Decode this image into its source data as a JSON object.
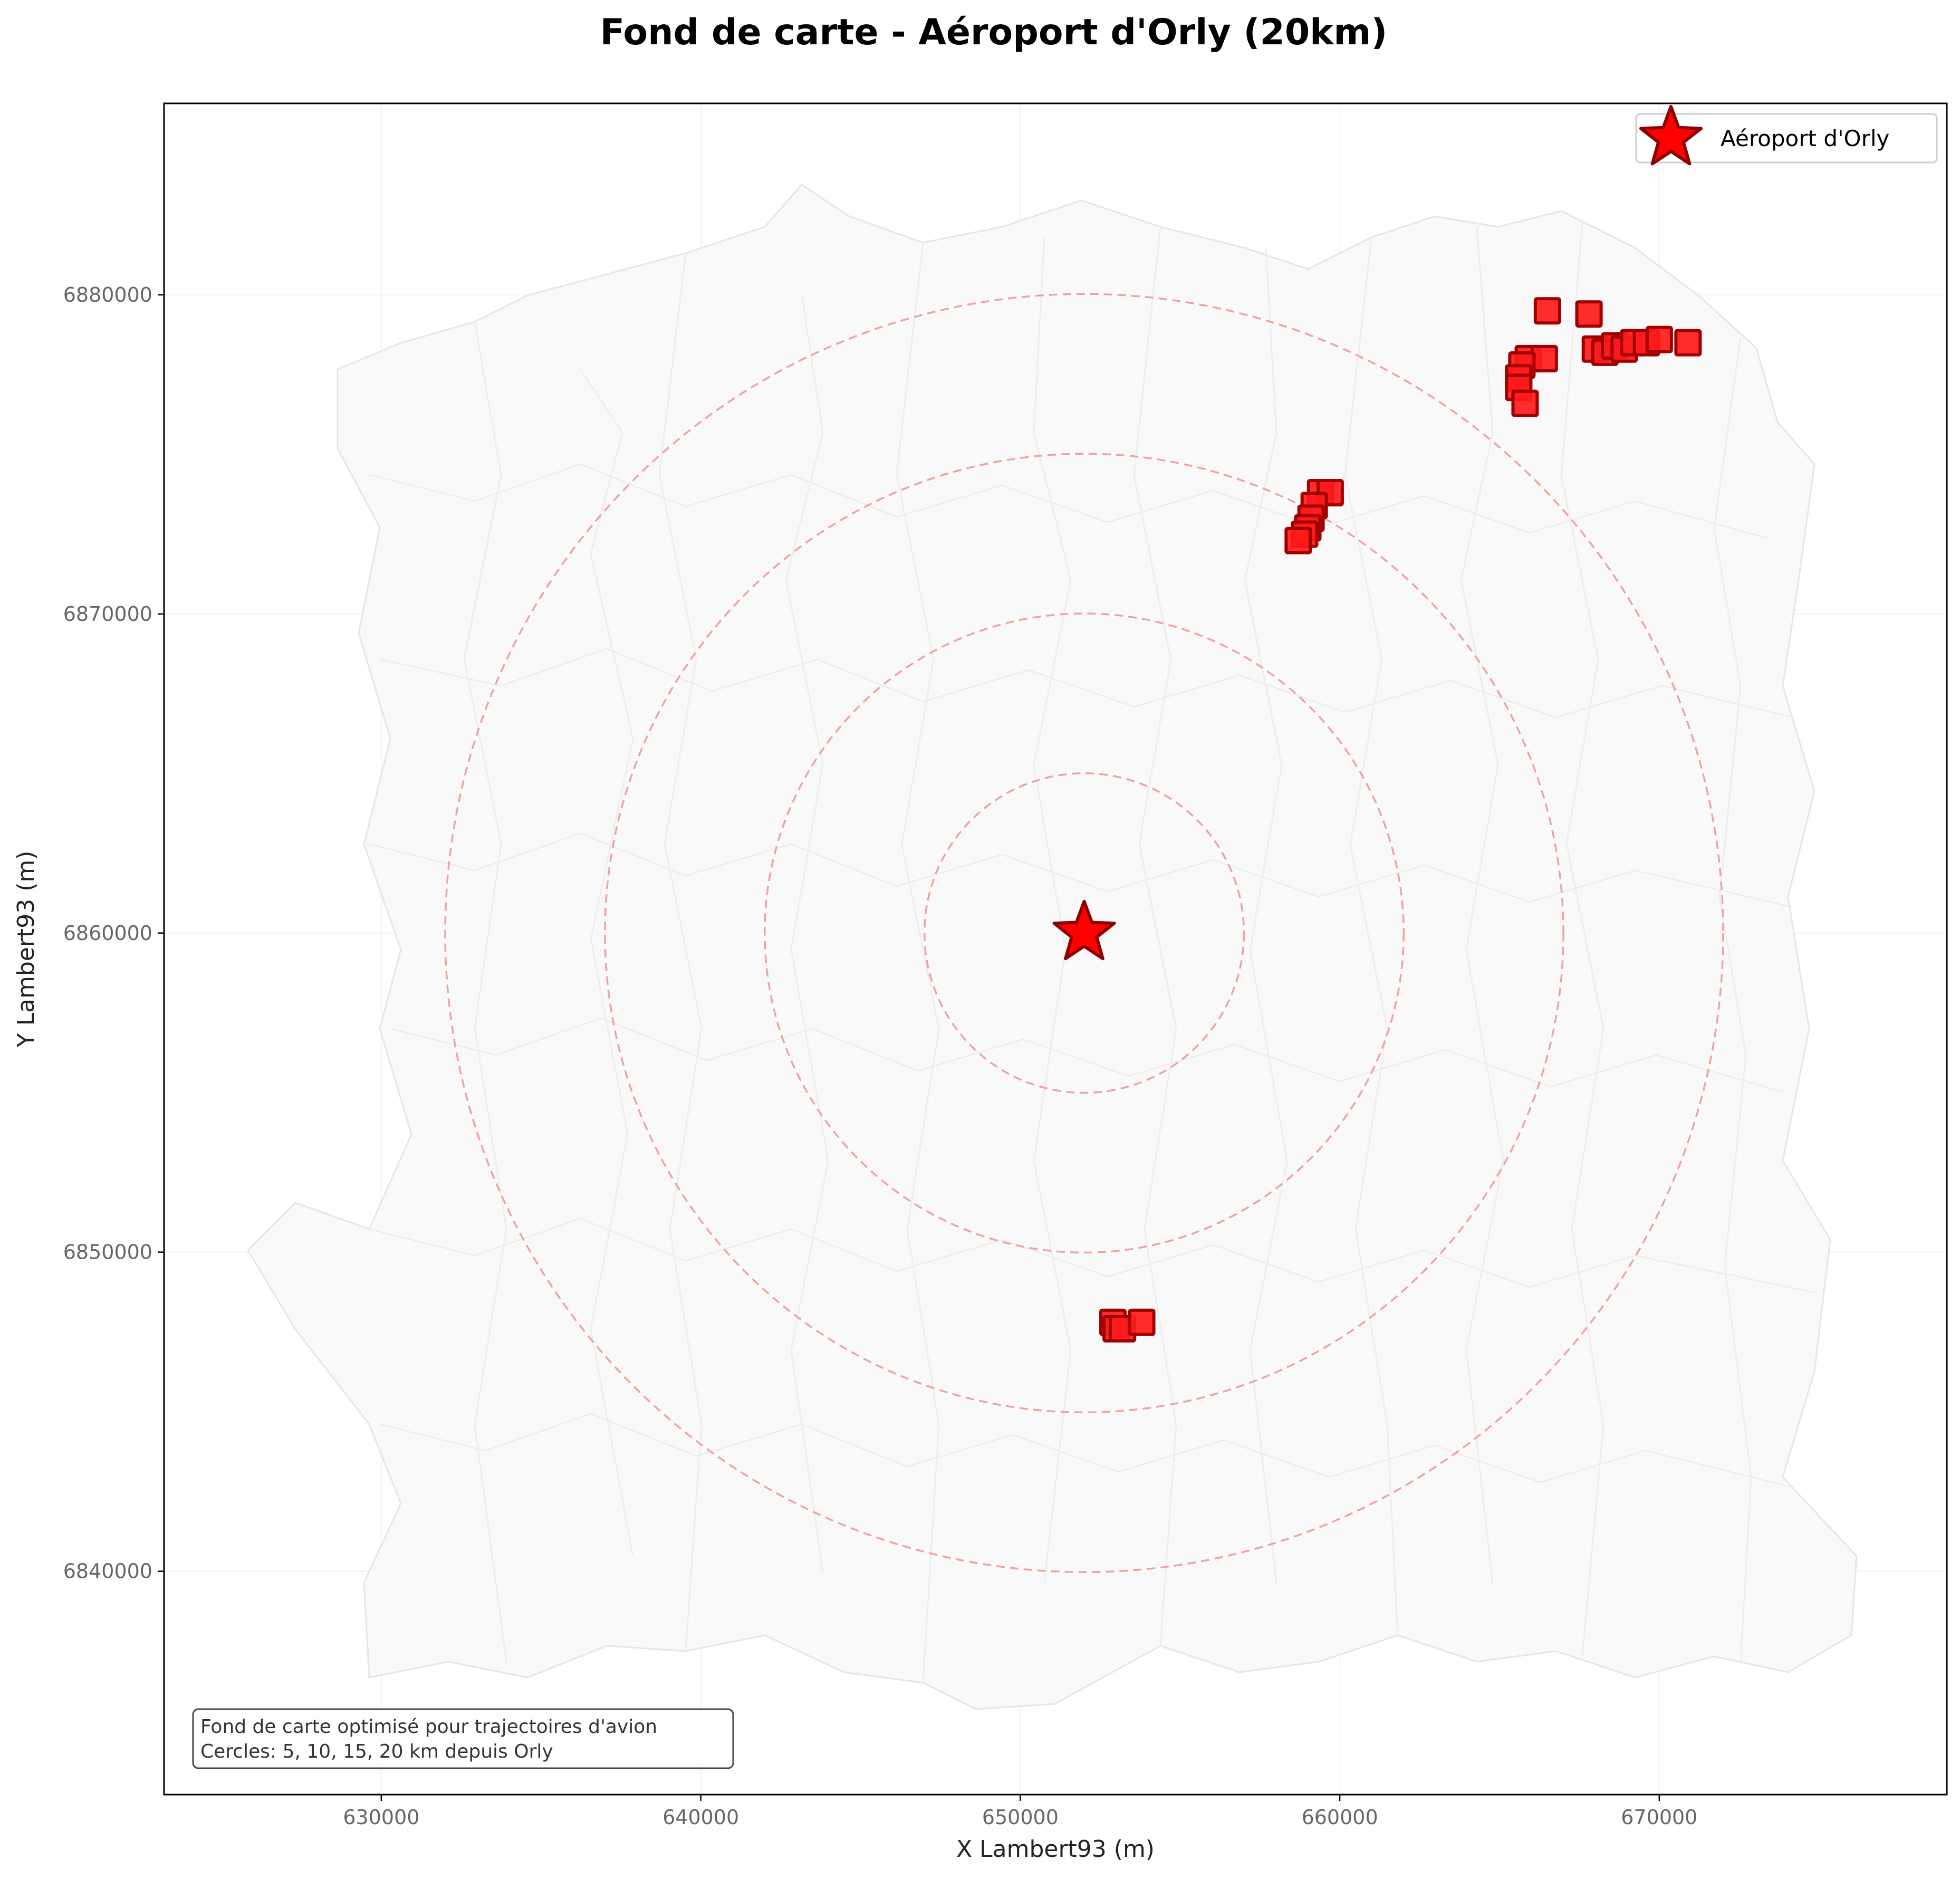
{
  "chart_data": {
    "type": "scatter",
    "title": "Fond de carte - Aéroport d'Orly (20km)",
    "xlabel": "X Lambert93 (m)",
    "ylabel": "Y Lambert93 (m)",
    "xlim": [
      623200,
      679000
    ],
    "ylim": [
      6833000,
      6886000
    ],
    "x_ticks": [
      630000,
      640000,
      650000,
      660000,
      670000
    ],
    "y_ticks": [
      6840000,
      6850000,
      6860000,
      6870000,
      6880000
    ],
    "x_tick_labels": [
      "630000",
      "640000",
      "650000",
      "660000",
      "670000"
    ],
    "y_tick_labels": [
      "6840000",
      "6850000",
      "6860000",
      "6870000",
      "6880000"
    ],
    "grid": true,
    "legend_position": "top-right",
    "airport": {
      "name": "Aéroport d'Orly",
      "x": 652000,
      "y": 6860000,
      "color": "#ff0000",
      "edge_color": "#8b0000",
      "marker": "star"
    },
    "circles": {
      "radii_km": [
        5,
        10,
        15,
        20
      ],
      "color": "#f4a0a0",
      "style": "dashed"
    },
    "points": {
      "marker": "square",
      "color": "#ff1a1a",
      "edge_color": "#a00000",
      "values": [
        [
          666500,
          6879500
        ],
        [
          667800,
          6879400
        ],
        [
          668000,
          6878300
        ],
        [
          668300,
          6878200
        ],
        [
          668600,
          6878400
        ],
        [
          668900,
          6878300
        ],
        [
          669200,
          6878500
        ],
        [
          669600,
          6878500
        ],
        [
          670000,
          6878600
        ],
        [
          670900,
          6878500
        ],
        [
          665900,
          6878000
        ],
        [
          666400,
          6878000
        ],
        [
          665700,
          6877800
        ],
        [
          665600,
          6877400
        ],
        [
          665600,
          6877100
        ],
        [
          665800,
          6876600
        ],
        [
          659400,
          6873800
        ],
        [
          659700,
          6873800
        ],
        [
          659200,
          6873400
        ],
        [
          659100,
          6873000
        ],
        [
          659000,
          6872700
        ],
        [
          658900,
          6872500
        ],
        [
          658700,
          6872300
        ],
        [
          652900,
          6847800
        ],
        [
          653000,
          6847600
        ],
        [
          653200,
          6847600
        ],
        [
          653800,
          6847800
        ]
      ]
    },
    "basemap": {
      "fill": "#f9f9f9",
      "stroke": "#e8e8e8"
    },
    "note_lines": [
      "Fond de carte optimisé pour trajectoires d'avion",
      "Cercles: 5, 10, 15, 20 km depuis Orly"
    ]
  }
}
